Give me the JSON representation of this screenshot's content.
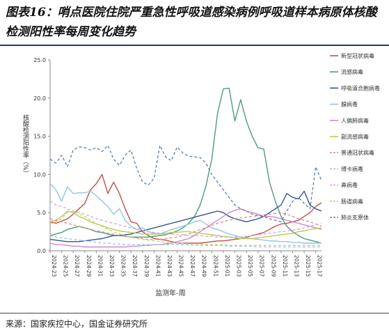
{
  "figure": {
    "title": "图表16：哨点医院住院严重急性呼吸道感染病例呼吸道样本病原体核酸检测阳性率每周变化趋势",
    "source": "来源：国家疾控中心，国金证券研究所"
  },
  "chart_data": {
    "type": "line",
    "ylabel": "核酸检测阳性率（%）",
    "xlabel": "监测年-周",
    "ylim": [
      0,
      25
    ],
    "yticks": [
      "0.0",
      "5.0",
      "10.0",
      "15.0",
      "20.0",
      "25.0"
    ],
    "grid": false,
    "legend": "right",
    "categories": [
      "2024-23",
      "2024-24",
      "2024-25",
      "2024-26",
      "2024-27",
      "2024-28",
      "2024-29",
      "2024-30",
      "2024-31",
      "2024-32",
      "2024-33",
      "2024-34",
      "2024-35",
      "2024-36",
      "2024-37",
      "2024-38",
      "2024-39",
      "2024-40",
      "2024-41",
      "2024-42",
      "2024-43",
      "2024-44",
      "2024-45",
      "2024-46",
      "2024-47",
      "2024-48",
      "2024-49",
      "2024-50",
      "2024-51",
      "2024-52",
      "2025-01",
      "2025-02",
      "2025-03",
      "2025-04",
      "2025-05",
      "2025-06",
      "2025-07",
      "2025-08",
      "2025-09",
      "2025-10",
      "2025-11",
      "2025-12",
      "2025-13",
      "2025-14",
      "2025-15",
      "2025-16",
      "2025-17",
      "2025-18"
    ],
    "tick_labels": [
      "2024-23",
      "2024-25",
      "2024-27",
      "2024-29",
      "2024-31",
      "2024-33",
      "2024-35",
      "2024-37",
      "2024-39",
      "2024-41",
      "2024-43",
      "2024-45",
      "2024-47",
      "2024-49",
      "2024-51",
      "2025-01",
      "2025-03",
      "2025-05",
      "2025-07",
      "2025-09",
      "2025-11",
      "2025-13",
      "2025-15",
      "2025-17"
    ],
    "series": [
      {
        "name": "新型冠状病毒",
        "color": "#c0504d",
        "dash": "solid",
        "values": [
          3.8,
          3.6,
          3.9,
          4.2,
          4.8,
          5.5,
          6.2,
          8.0,
          8.8,
          10.0,
          7.5,
          9.0,
          7.5,
          5.5,
          3.8,
          3.6,
          2.5,
          2.0,
          1.6,
          1.5,
          1.4,
          1.2,
          1.0,
          1.0,
          1.0,
          1.0,
          1.0,
          1.1,
          1.2,
          1.3,
          1.3,
          1.4,
          1.5,
          1.6,
          1.8,
          2.0,
          2.2,
          2.4,
          2.8,
          3.2,
          3.5,
          3.6,
          3.8,
          4.0,
          4.5,
          5.0,
          5.8,
          6.3
        ]
      },
      {
        "name": "流感病毒",
        "color": "#4e9a7d",
        "dash": "solid",
        "values": [
          2.0,
          2.2,
          2.4,
          2.8,
          3.0,
          3.2,
          3.0,
          2.8,
          2.5,
          2.4,
          2.2,
          2.0,
          2.0,
          1.9,
          1.8,
          1.8,
          1.8,
          1.8,
          1.9,
          2.0,
          2.1,
          2.3,
          2.6,
          3.0,
          3.6,
          4.5,
          6.0,
          8.5,
          12.0,
          18.0,
          21.2,
          21.3,
          17.0,
          19.8,
          17.0,
          15.0,
          13.5,
          13.3,
          9.0,
          6.5,
          4.5,
          3.2,
          2.5,
          2.0,
          1.6,
          1.4,
          1.2,
          1.0
        ]
      },
      {
        "name": "呼吸道合胞病毒",
        "color": "#2f5597",
        "dash": "solid",
        "values": [
          1.5,
          1.4,
          1.3,
          1.2,
          1.2,
          1.2,
          1.3,
          1.4,
          1.5,
          1.6,
          1.8,
          2.0,
          2.0,
          2.1,
          2.2,
          2.4,
          2.6,
          2.8,
          3.0,
          3.2,
          3.4,
          3.6,
          3.8,
          4.0,
          4.2,
          4.4,
          4.6,
          4.8,
          5.0,
          5.2,
          5.0,
          4.5,
          4.2,
          4.0,
          3.8,
          4.0,
          4.2,
          4.5,
          5.0,
          5.5,
          6.0,
          7.5,
          7.0,
          6.8,
          7.8,
          6.0,
          5.5,
          5.2
        ]
      },
      {
        "name": "腺病毒",
        "color": "#92c5de",
        "dash": "solid",
        "values": [
          8.8,
          8.0,
          6.5,
          8.4,
          7.5,
          7.6,
          7.6,
          7.8,
          7.2,
          6.5,
          5.8,
          4.8,
          5.5,
          4.0,
          3.2,
          2.8,
          3.0,
          2.5,
          2.3,
          2.2,
          2.5,
          2.8,
          3.0,
          3.2,
          3.5,
          3.8,
          4.0,
          3.5,
          3.0,
          2.8,
          2.5,
          2.2,
          2.0,
          1.8,
          1.7,
          1.6,
          1.5,
          1.4,
          1.3,
          1.3,
          1.2,
          1.2,
          1.1,
          1.1,
          1.0,
          1.0,
          1.0,
          1.0
        ]
      },
      {
        "name": "人偏肺病毒",
        "color": "#cc88cc",
        "dash": "solid",
        "values": [
          1.0,
          0.8,
          0.8,
          0.7,
          0.6,
          0.6,
          0.5,
          0.5,
          0.5,
          0.5,
          0.5,
          0.5,
          0.5,
          0.5,
          0.6,
          0.6,
          0.7,
          0.7,
          0.8,
          0.8,
          0.9,
          1.0,
          1.2,
          1.4,
          1.6,
          2.0,
          2.5,
          3.0,
          3.5,
          4.0,
          4.5,
          5.0,
          5.3,
          5.5,
          5.2,
          5.0,
          4.8,
          4.5,
          4.5,
          4.4,
          4.2,
          4.0,
          3.8,
          3.6,
          3.4,
          3.2,
          3.0,
          2.8
        ]
      },
      {
        "name": "副流感病毒",
        "color": "#b8cc52",
        "dash": "solid",
        "values": [
          3.8,
          4.0,
          4.5,
          5.2,
          5.0,
          4.5,
          4.2,
          3.8,
          3.5,
          3.3,
          3.0,
          2.8,
          2.6,
          2.5,
          2.4,
          2.3,
          2.2,
          2.2,
          2.2,
          2.2,
          2.3,
          2.4,
          2.4,
          2.5,
          2.5,
          2.4,
          2.3,
          2.2,
          2.1,
          2.0,
          1.9,
          1.8,
          1.7,
          1.6,
          1.6,
          1.6,
          1.7,
          1.8,
          1.9,
          2.0,
          2.1,
          2.2,
          2.3,
          2.5,
          2.6,
          2.8,
          2.9,
          3.0
        ]
      },
      {
        "name": "普通冠状病毒",
        "color": "#d98c8c",
        "dash": "dashed",
        "values": [
          4.2,
          4.0,
          3.8,
          3.6,
          3.4,
          3.2,
          3.0,
          2.8,
          2.6,
          2.5,
          2.3,
          2.2,
          2.0,
          1.9,
          1.8,
          1.7,
          1.6,
          1.5,
          1.5,
          1.5,
          1.6,
          1.7,
          1.8,
          2.0,
          2.2,
          2.5,
          2.8,
          3.0,
          3.3,
          3.6,
          3.8,
          4.0,
          4.2,
          4.3,
          4.4,
          4.5,
          4.6,
          4.7,
          4.8,
          4.9,
          5.0,
          4.8,
          4.5,
          4.2,
          4.0,
          3.8,
          3.5,
          3.2
        ]
      },
      {
        "name": "博卡病毒",
        "color": "#9dc3e6",
        "dash": "dashed",
        "values": [
          2.0,
          1.8,
          1.7,
          1.6,
          1.5,
          1.4,
          1.3,
          1.2,
          1.1,
          1.0,
          1.0,
          0.9,
          0.9,
          0.8,
          0.8,
          0.8,
          0.8,
          0.8,
          0.8,
          0.8,
          0.8,
          0.8,
          0.8,
          0.8,
          0.8,
          0.7,
          0.7,
          0.7,
          0.7,
          0.7,
          0.7,
          0.6,
          0.6,
          0.6,
          0.6,
          0.6,
          0.5,
          0.5,
          0.5,
          0.5,
          0.5,
          0.5,
          0.5,
          0.5,
          0.5,
          0.5,
          0.5,
          0.5
        ]
      },
      {
        "name": "鼻病毒",
        "color": "#d9a3d9",
        "dash": "dashed",
        "values": [
          6.5,
          6.0,
          5.8,
          5.5,
          5.2,
          5.0,
          4.8,
          4.5,
          4.2,
          4.0,
          3.8,
          3.6,
          3.4,
          3.2,
          3.0,
          2.8,
          2.6,
          2.5,
          2.4,
          2.3,
          2.2,
          2.2,
          2.1,
          2.1,
          2.0,
          2.0,
          2.0,
          1.9,
          1.9,
          1.8,
          1.8,
          1.8,
          1.8,
          1.8,
          1.9,
          2.0,
          2.1,
          2.2,
          2.3,
          2.4,
          2.5,
          2.6,
          2.7,
          2.8,
          3.0,
          3.2,
          3.4,
          3.6
        ]
      },
      {
        "name": "肠道病毒",
        "color": "#c6d26b",
        "dash": "dashed",
        "values": [
          3.5,
          3.8,
          4.2,
          5.0,
          5.2,
          4.8,
          4.5,
          4.0,
          3.6,
          3.2,
          2.8,
          2.5,
          2.2,
          2.0,
          1.8,
          1.6,
          1.5,
          1.4,
          1.3,
          1.2,
          1.1,
          1.0,
          1.0,
          1.0,
          0.9,
          0.9,
          0.9,
          0.8,
          0.8,
          0.8,
          0.8,
          0.7,
          0.7,
          0.7,
          0.7,
          0.7,
          0.7,
          0.7,
          0.7,
          0.7,
          0.7,
          0.7,
          0.7,
          0.7,
          0.7,
          0.7,
          0.7,
          0.7
        ]
      },
      {
        "name": "肺炎支原体",
        "color": "#5b7ea6",
        "dash": "dashed",
        "values": [
          12.0,
          11.5,
          12.5,
          11.0,
          13.2,
          13.6,
          13.5,
          13.2,
          13.5,
          13.0,
          13.8,
          12.0,
          11.2,
          12.5,
          13.2,
          10.8,
          9.0,
          8.6,
          9.5,
          13.8,
          12.3,
          11.8,
          13.6,
          12.8,
          12.4,
          12.3,
          12.2,
          11.5,
          10.0,
          9.0,
          8.0,
          7.0,
          6.0,
          5.5,
          5.2,
          4.8,
          4.6,
          4.5,
          4.2,
          4.0,
          3.8,
          5.2,
          6.5,
          7.0,
          6.2,
          5.5,
          11.0,
          9.2
        ]
      }
    ]
  }
}
